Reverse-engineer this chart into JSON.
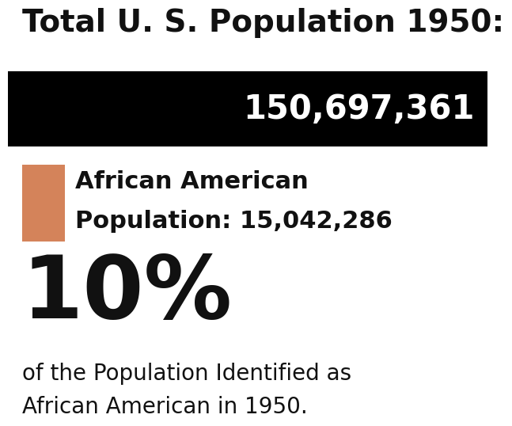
{
  "title": "Total U. S. Population 1950:",
  "total_pop": "150,697,361",
  "aa_pop_line1": "African American",
  "aa_pop_line2": "Population: 15,042,286",
  "percentage": "10%",
  "pct_subtitle_line1": "of the Population Identified as",
  "pct_subtitle_line2": "African American in 1950.",
  "black_bar_color": "#000000",
  "white_text_color": "#ffffff",
  "black_text_color": "#111111",
  "orange_box_color": "#d4835a",
  "bg_color": "#ffffff",
  "title_fontsize": 28,
  "total_pop_fontsize": 30,
  "aa_label_fontsize": 22,
  "pct_fontsize": 80,
  "pct_sub_fontsize": 20
}
